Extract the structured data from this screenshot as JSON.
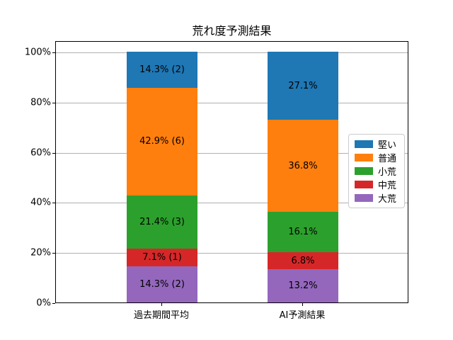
{
  "title": "荒れ度予測結果",
  "chart_data": {
    "type": "bar",
    "stacked": true,
    "percent_stacked": true,
    "title": "荒れ度予測結果",
    "categories": [
      "過去期間平均",
      "AI予測結果"
    ],
    "series": [
      {
        "name": "堅い",
        "color": "#1f77b4",
        "values": [
          14.3,
          27.1
        ],
        "labels": [
          "14.3% (2)",
          "27.1%"
        ]
      },
      {
        "name": "普通",
        "color": "#ff7f0e",
        "values": [
          42.9,
          36.8
        ],
        "labels": [
          "42.9% (6)",
          "36.8%"
        ]
      },
      {
        "name": "小荒",
        "color": "#2ca02c",
        "values": [
          21.4,
          16.1
        ],
        "labels": [
          "21.4% (3)",
          "16.1%"
        ]
      },
      {
        "name": "中荒",
        "color": "#d62728",
        "values": [
          7.1,
          6.8
        ],
        "labels": [
          "7.1% (1)",
          "6.8%"
        ]
      },
      {
        "name": "大荒",
        "color": "#9467bd",
        "values": [
          14.3,
          13.2
        ],
        "labels": [
          "14.3% (2)",
          "13.2%"
        ]
      }
    ],
    "stack_order_note": "series listed top-to-bottom of stack; legend order matches",
    "y_ticks": [
      {
        "label": "0%",
        "value": 0
      },
      {
        "label": "20%",
        "value": 20
      },
      {
        "label": "40%",
        "value": 40
      },
      {
        "label": "60%",
        "value": 60
      },
      {
        "label": "80%",
        "value": 80
      },
      {
        "label": "100%",
        "value": 100
      }
    ],
    "ylim": [
      0,
      104.5
    ],
    "grid": true,
    "grid_color": "#b0b0b0",
    "legend_position": "right-inside",
    "text_color": "#000000",
    "background_color": "#ffffff"
  }
}
